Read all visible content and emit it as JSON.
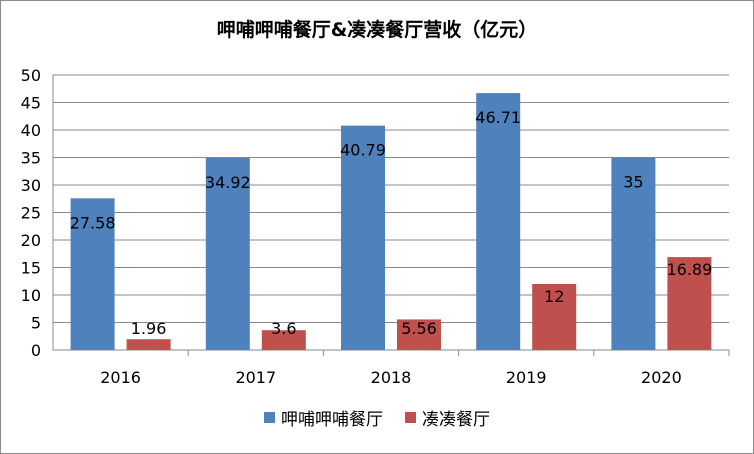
{
  "chart_data": {
    "type": "bar",
    "title": "呷哺呷哺餐厅&凑凑餐厅营收（亿元）",
    "xlabel": "",
    "ylabel": "",
    "categories": [
      "2016",
      "2017",
      "2018",
      "2019",
      "2020"
    ],
    "ylim": [
      0,
      50
    ],
    "yticks": [
      0,
      5,
      10,
      15,
      20,
      25,
      30,
      35,
      40,
      45,
      50
    ],
    "grid": true,
    "legend_position": "bottom",
    "series": [
      {
        "name": "呷哺呷哺餐厅",
        "color": "#4f81bd",
        "values": [
          27.58,
          34.92,
          40.79,
          46.71,
          35
        ],
        "labels": [
          "27.58",
          "34.92",
          "40.79",
          "46.71",
          "35"
        ]
      },
      {
        "name": "凑凑餐厅",
        "color": "#c0504d",
        "values": [
          1.96,
          3.6,
          5.56,
          12,
          16.89
        ],
        "labels": [
          "1.96",
          "3.6",
          "5.56",
          "12",
          "16.89"
        ]
      }
    ]
  }
}
